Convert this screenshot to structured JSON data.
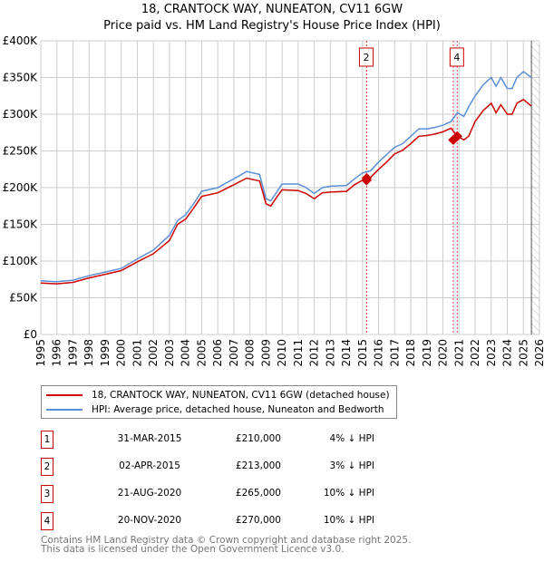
{
  "title": "18, CRANTOCK WAY, NUNEATON, CV11 6GW",
  "subtitle": "Price paid vs. HM Land Registry's House Price Index (HPI)",
  "chart_data": {
    "type": "line",
    "title": "18, CRANTOCK WAY, NUNEATON, CV11 6GW — Price paid vs. HM Land Registry's House Price Index (HPI)",
    "xlim": [
      1995,
      2026
    ],
    "ylim": [
      0,
      400000
    ],
    "x_ticks": [
      "1995",
      "1996",
      "1997",
      "1998",
      "1999",
      "2000",
      "2001",
      "2002",
      "2003",
      "2004",
      "2005",
      "2006",
      "2007",
      "2008",
      "2009",
      "2010",
      "2011",
      "2012",
      "2013",
      "2014",
      "2015",
      "2016",
      "2017",
      "2018",
      "2019",
      "2020",
      "2021",
      "2022",
      "2023",
      "2024",
      "2025",
      "2026"
    ],
    "y_ticks": [
      {
        "v": 0,
        "label": "£0"
      },
      {
        "v": 50000,
        "label": "£50K"
      },
      {
        "v": 100000,
        "label": "£100K"
      },
      {
        "v": 150000,
        "label": "£150K"
      },
      {
        "v": 200000,
        "label": "£200K"
      },
      {
        "v": 250000,
        "label": "£250K"
      },
      {
        "v": 300000,
        "label": "£300K"
      },
      {
        "v": 350000,
        "label": "£350K"
      },
      {
        "v": 400000,
        "label": "£400K"
      }
    ],
    "grid": true,
    "x": [
      1995,
      1996,
      1997,
      1998,
      1999,
      2000,
      2001,
      2002,
      2003,
      2003.5,
      2004,
      2004.5,
      2005,
      2006,
      2007,
      2007.8,
      2008.6,
      2009,
      2009.3,
      2009.7,
      2010,
      2011,
      2011.5,
      2012,
      2012.5,
      2013,
      2014,
      2014.5,
      2015,
      2015.5,
      2016,
      2016.5,
      2017,
      2017.5,
      2018,
      2018.5,
      2019,
      2019.5,
      2020,
      2020.5,
      2020.9,
      2021.3,
      2021.6,
      2022,
      2022.5,
      2023,
      2023.3,
      2023.6,
      2024,
      2024.3,
      2024.6,
      2025,
      2025.5
    ],
    "series": [
      {
        "name": "18, CRANTOCK WAY, NUNEATON, CV11 6GW (detached house)",
        "color": "#cc0000",
        "values": [
          70000,
          69000,
          71000,
          77000,
          82000,
          87000,
          99000,
          110000,
          128000,
          150000,
          157000,
          172000,
          188000,
          193000,
          204000,
          213000,
          209000,
          178000,
          175000,
          188000,
          197000,
          196000,
          192000,
          185000,
          193000,
          194000,
          195000,
          204000,
          210000,
          214000,
          225000,
          235000,
          246000,
          251000,
          260000,
          270000,
          271000,
          273000,
          276000,
          281000,
          270000,
          265000,
          270000,
          290000,
          305000,
          315000,
          302000,
          313000,
          300000,
          300000,
          315000,
          320000,
          311000
        ]
      },
      {
        "name": "HPI: Average price, detached house, Nuneaton and Bedworth",
        "color": "#5b8fd4",
        "values": [
          73000,
          72000,
          74000,
          80000,
          85000,
          90000,
          103000,
          115000,
          135000,
          155000,
          163000,
          178000,
          195000,
          200000,
          212000,
          222000,
          218000,
          185000,
          182000,
          195000,
          205000,
          205000,
          200000,
          192000,
          200000,
          202000,
          203000,
          212000,
          220000,
          223000,
          235000,
          245000,
          255000,
          260000,
          270000,
          280000,
          280000,
          282000,
          285000,
          290000,
          302000,
          297000,
          310000,
          325000,
          340000,
          350000,
          338000,
          350000,
          335000,
          335000,
          350000,
          358000,
          350000
        ]
      }
    ],
    "sales": [
      {
        "id": "1",
        "x": 2015.25,
        "y": 210000
      },
      {
        "id": "2",
        "x": 2015.26,
        "y": 213000
      },
      {
        "id": "3",
        "x": 2020.64,
        "y": 265000
      },
      {
        "id": "4",
        "x": 2020.89,
        "y": 270000
      }
    ],
    "shown_markers": [
      "2",
      "4"
    ],
    "forecast_start": 2025.5
  },
  "legend": {
    "property": "18, CRANTOCK WAY, NUNEATON, CV11 6GW (detached house)",
    "hpi": "HPI: Average price, detached house, Nuneaton and Bedworth",
    "property_color": "#cc0000",
    "hpi_color": "#5b8fd4"
  },
  "transactions": [
    {
      "num": "1",
      "date": "31-MAR-2015",
      "price": "£210,000",
      "hpi": "4% ↓ HPI"
    },
    {
      "num": "2",
      "date": "02-APR-2015",
      "price": "£213,000",
      "hpi": "3% ↓ HPI"
    },
    {
      "num": "3",
      "date": "21-AUG-2020",
      "price": "£265,000",
      "hpi": "10% ↓ HPI"
    },
    {
      "num": "4",
      "date": "20-NOV-2020",
      "price": "£270,000",
      "hpi": "10% ↓ HPI"
    }
  ],
  "footer": {
    "line1": "Contains HM Land Registry data © Crown copyright and database right 2025.",
    "line2": "This data is licensed under the Open Government Licence v3.0."
  }
}
